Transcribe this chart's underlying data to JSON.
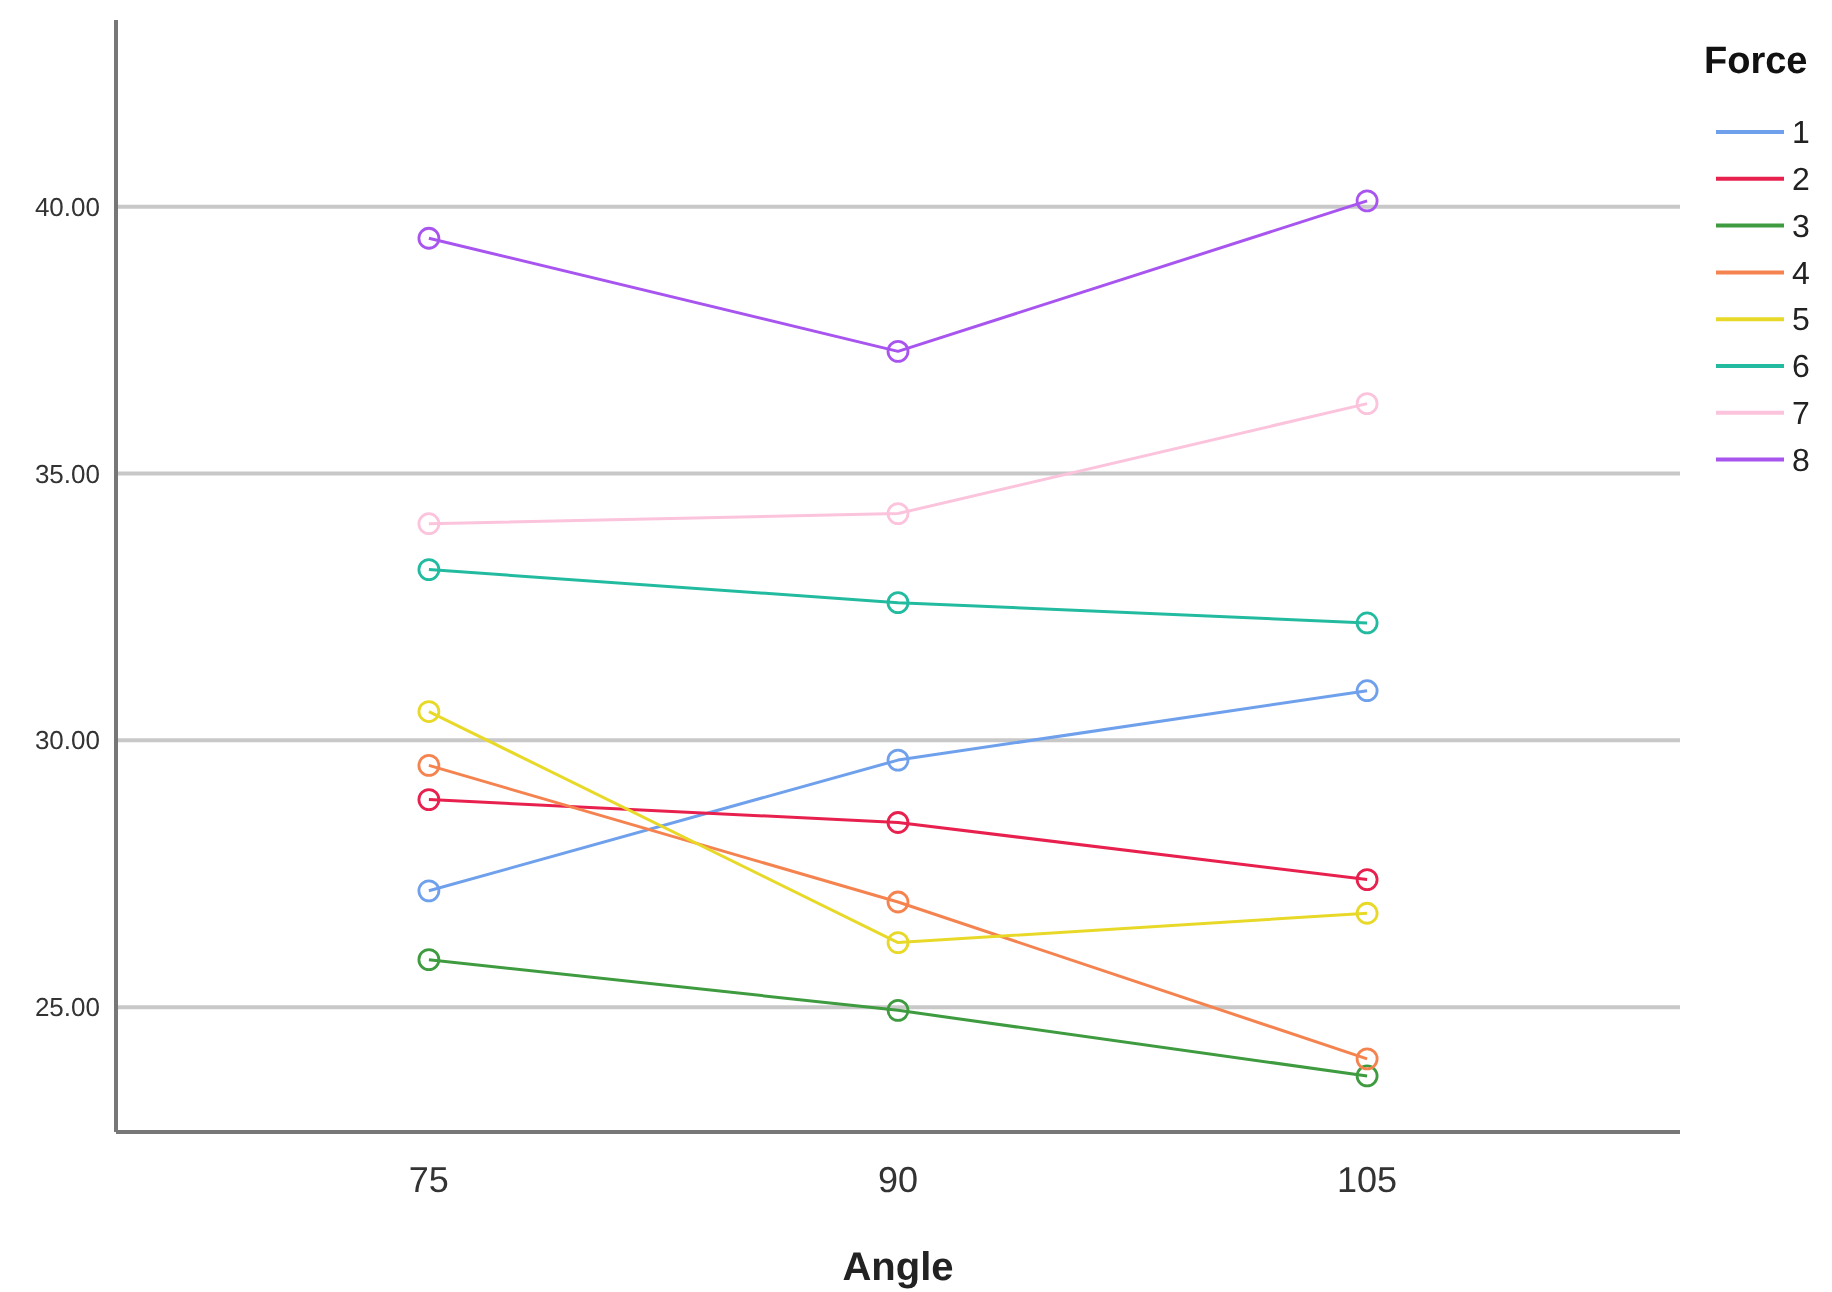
{
  "chart_data": {
    "type": "line",
    "xlabel": "Angle",
    "legend_title": "Force",
    "categories": [
      "75",
      "90",
      "105"
    ],
    "series": [
      {
        "name": "1",
        "color": "#6fa0ec",
        "values": [
          27.18,
          29.63,
          30.93
        ]
      },
      {
        "name": "2",
        "color": "#e8204e",
        "values": [
          28.89,
          28.46,
          27.39
        ]
      },
      {
        "name": "3",
        "color": "#3f9b3f",
        "values": [
          25.89,
          24.94,
          23.71
        ]
      },
      {
        "name": "4",
        "color": "#f5834f",
        "values": [
          29.53,
          26.97,
          24.03
        ]
      },
      {
        "name": "5",
        "color": "#e8d929",
        "values": [
          30.54,
          26.21,
          26.76
        ]
      },
      {
        "name": "6",
        "color": "#23bba0",
        "values": [
          33.2,
          32.58,
          32.2
        ]
      },
      {
        "name": "7",
        "color": "#fcc3dc",
        "values": [
          34.06,
          34.25,
          36.31
        ]
      },
      {
        "name": "8",
        "color": "#a855f0",
        "values": [
          39.41,
          37.29,
          40.11
        ]
      }
    ],
    "ylim": [
      22.66,
      43.5
    ],
    "yticks": [
      {
        "value": 25,
        "label": "25.00"
      },
      {
        "value": 30,
        "label": "30.00"
      },
      {
        "value": 35,
        "label": "35.00"
      },
      {
        "value": 40,
        "label": "40.00"
      }
    ],
    "grid": "y",
    "legend": "top right",
    "marker": "circle",
    "line_style": "solid"
  }
}
